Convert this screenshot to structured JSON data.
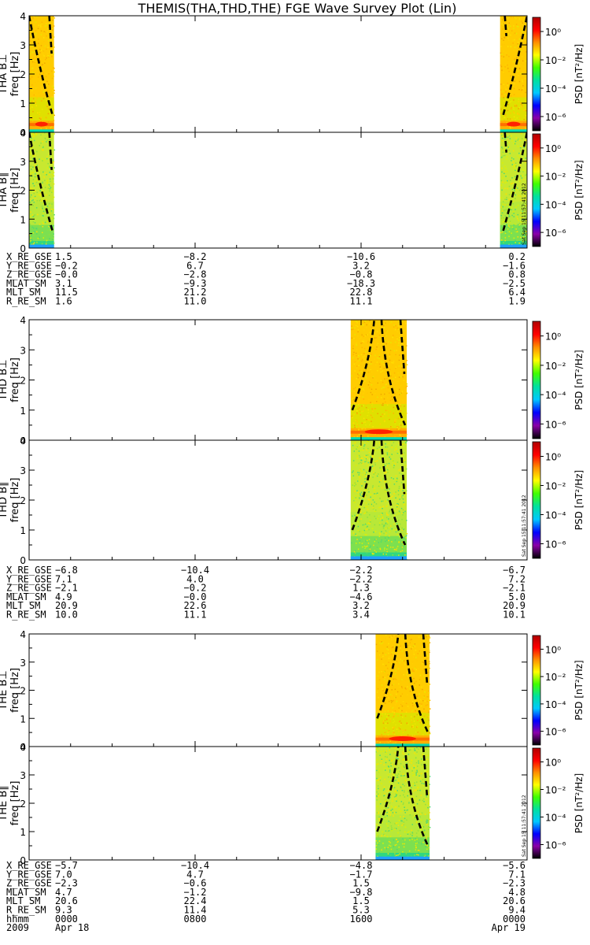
{
  "title": "THEMIS(THA,THD,THE) FGE Wave Survey Plot (Lin)",
  "stamp": "Sat Sep 15 11:57:41 2012",
  "colorbar": {
    "label": "PSD [nT²/Hz]",
    "tick_labels": [
      "10⁰",
      "10⁻²",
      "10⁻⁴",
      "10⁻⁶"
    ],
    "log_range": [
      -7,
      1
    ],
    "colors": [
      "#000000",
      "#8a00a8",
      "#0000ff",
      "#00c8ff",
      "#00e0a0",
      "#40ff00",
      "#ffff00",
      "#ff9000",
      "#ff0000",
      "#b00000"
    ]
  },
  "chart_data": {
    "type": "heatmap",
    "x_axis": {
      "unit": "hhmm",
      "range": [
        "0000",
        "2400"
      ],
      "tick_labels": [
        "0000",
        "0800",
        "1600",
        "0000"
      ],
      "date_labels": [
        "2009",
        "Apr 18",
        "",
        "",
        "Apr 19"
      ]
    },
    "y_axis": {
      "label": "freq [Hz]",
      "range": [
        0,
        4
      ],
      "ticks": [
        0,
        1,
        2,
        3,
        4
      ]
    },
    "panels": [
      {
        "label": "THA B⊥",
        "probe": "THA",
        "component": "perp",
        "data_intervals": [
          [
            0.0,
            1.2
          ],
          [
            22.7,
            24.0
          ]
        ]
      },
      {
        "label": "THA B∥",
        "probe": "THA",
        "component": "par",
        "data_intervals": [
          [
            0.0,
            1.2
          ],
          [
            22.7,
            24.0
          ]
        ]
      },
      {
        "label": "THD B⊥",
        "probe": "THD",
        "component": "perp",
        "data_intervals": [
          [
            15.5,
            18.2
          ]
        ]
      },
      {
        "label": "THD B∥",
        "probe": "THD",
        "component": "par",
        "data_intervals": [
          [
            15.5,
            18.2
          ]
        ]
      },
      {
        "label": "THE B⊥",
        "probe": "THE",
        "component": "perp",
        "data_intervals": [
          [
            16.7,
            19.3
          ]
        ]
      },
      {
        "label": "THE B∥",
        "probe": "THE",
        "component": "par",
        "data_intervals": [
          [
            16.7,
            19.3
          ]
        ]
      }
    ],
    "ephemeris": [
      {
        "probe": "THA",
        "rows": [
          {
            "name": "X_RE_GSE",
            "values": [
              "1.5",
              "−8.2",
              "−10.6",
              "0.2"
            ]
          },
          {
            "name": "Y_RE_GSE",
            "values": [
              "−0.2",
              "6.7",
              "3.2",
              "−1.6"
            ]
          },
          {
            "name": "Z_RE_GSE",
            "values": [
              "−0.0",
              "−2.8",
              "−0.8",
              "0.8"
            ]
          },
          {
            "name": "MLAT_SM",
            "values": [
              "3.1",
              "−9.3",
              "−18.3",
              "−2.5"
            ]
          },
          {
            "name": "MLT_SM",
            "values": [
              "11.5",
              "21.2",
              "22.8",
              "6.4"
            ]
          },
          {
            "name": "R_RE_SM",
            "values": [
              "1.6",
              "11.0",
              "11.1",
              "1.9"
            ]
          }
        ]
      },
      {
        "probe": "THD",
        "rows": [
          {
            "name": "X_RE_GSE",
            "values": [
              "−6.8",
              "−10.4",
              "−2.2",
              "−6.7"
            ]
          },
          {
            "name": "Y_RE_GSE",
            "values": [
              "7.1",
              "4.0",
              "−2.2",
              "7.2"
            ]
          },
          {
            "name": "Z_RE_GSE",
            "values": [
              "−2.1",
              "−0.2",
              "1.3",
              "−2.1"
            ]
          },
          {
            "name": "MLAT_SM",
            "values": [
              "4.9",
              "−0.0",
              "−4.6",
              "5.0"
            ]
          },
          {
            "name": "MLT_SM",
            "values": [
              "20.9",
              "22.6",
              "3.2",
              "20.9"
            ]
          },
          {
            "name": "R_RE_SM",
            "values": [
              "10.0",
              "11.1",
              "3.4",
              "10.1"
            ]
          }
        ]
      },
      {
        "probe": "THE",
        "rows": [
          {
            "name": "X_RE_GSE",
            "values": [
              "−5.7",
              "−10.4",
              "−4.8",
              "−5.6"
            ]
          },
          {
            "name": "Y_RE_GSE",
            "values": [
              "7.0",
              "4.7",
              "−1.7",
              "7.1"
            ]
          },
          {
            "name": "Z_RE_GSE",
            "values": [
              "−2.3",
              "−0.6",
              "1.5",
              "−2.3"
            ]
          },
          {
            "name": "MLAT_SM",
            "values": [
              "4.7",
              "−1.2",
              "−9.8",
              "4.8"
            ]
          },
          {
            "name": "MLT_SM",
            "values": [
              "20.6",
              "22.4",
              "1.5",
              "20.6"
            ]
          },
          {
            "name": "R_RE_SM",
            "values": [
              "9.3",
              "11.4",
              "5.3",
              "9.4"
            ]
          }
        ]
      }
    ]
  }
}
